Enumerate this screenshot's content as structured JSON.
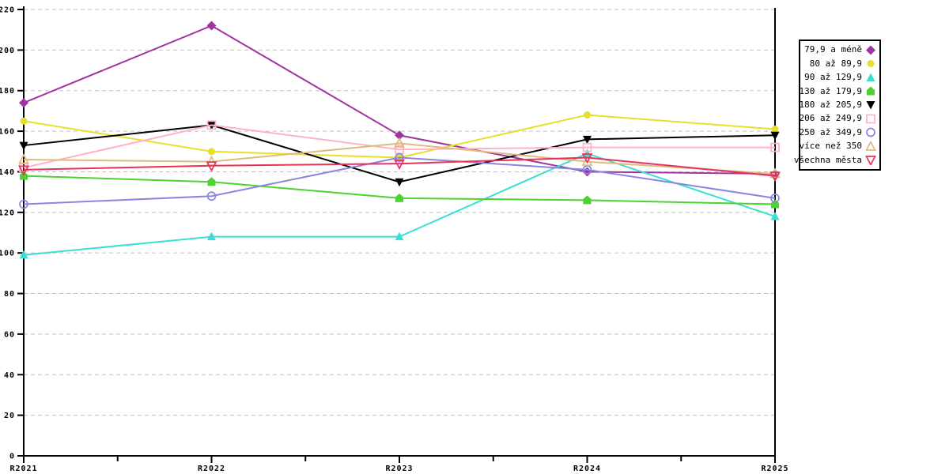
{
  "chart_data": {
    "type": "line",
    "title": "",
    "xlabel": "",
    "ylabel": "",
    "categories": [
      "R2021",
      "R2022",
      "R2023",
      "R2024",
      "R2025"
    ],
    "ylim": [
      0,
      220
    ],
    "ytick_step": 20,
    "grid": true,
    "grid_color": "#c0c0c0",
    "legend_position": "right",
    "axis_color": "#000000",
    "series": [
      {
        "name": "79,9 a méně",
        "color": "#A134A1",
        "marker": "diamond",
        "filled": true,
        "values": [
          174,
          212,
          158,
          140,
          139
        ]
      },
      {
        "name": "80 až 89,9",
        "color": "#E8DE2C",
        "marker": "circle",
        "filled": true,
        "values": [
          165,
          150,
          147,
          168,
          161
        ]
      },
      {
        "name": "90 až 129,9",
        "color": "#38DFD4",
        "marker": "triangle-up",
        "filled": true,
        "values": [
          99,
          108,
          108,
          149,
          118
        ]
      },
      {
        "name": "130 až 179,9",
        "color": "#4CD233",
        "marker": "house",
        "filled": true,
        "values": [
          138,
          135,
          127,
          126,
          124
        ]
      },
      {
        "name": "180 až 205,9",
        "color": "#000000",
        "marker": "triangle-down",
        "filled": true,
        "values": [
          153,
          163,
          135,
          156,
          158
        ]
      },
      {
        "name": "206 až 249,9",
        "color": "#FFB1C8",
        "marker": "square",
        "filled": false,
        "values": [
          142,
          163,
          151,
          152,
          152
        ]
      },
      {
        "name": "250 až 349,9",
        "color": "#8886E2",
        "marker": "circle",
        "filled": false,
        "values": [
          124,
          128,
          147,
          141,
          127
        ]
      },
      {
        "name": "více než 350",
        "color": "#DFBB82",
        "marker": "triangle-up",
        "filled": false,
        "values": [
          146,
          145,
          154,
          145,
          139
        ]
      },
      {
        "name": "všechna města",
        "color": "#E6335A",
        "marker": "triangle-down",
        "filled": false,
        "values": [
          141,
          143,
          144,
          147,
          138
        ]
      }
    ]
  }
}
